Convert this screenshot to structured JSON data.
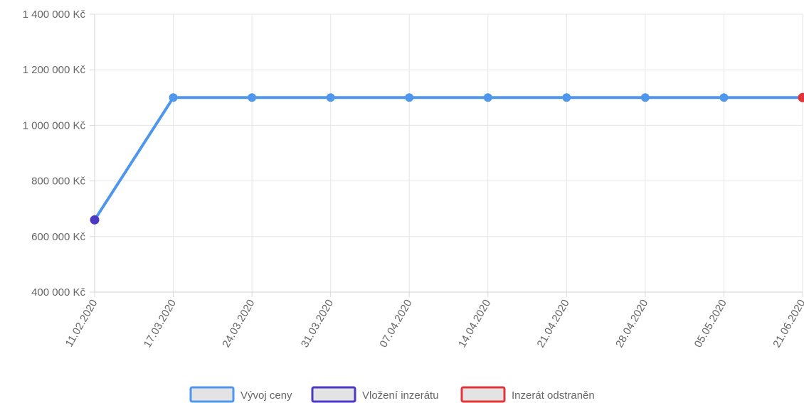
{
  "chart_data": {
    "type": "line",
    "x": [
      "11.02.2020",
      "17.03.2020",
      "24.03.2020",
      "31.03.2020",
      "07.04.2020",
      "14.04.2020",
      "21.04.2020",
      "28.04.2020",
      "05.05.2020",
      "21.06.2020"
    ],
    "y_ticks": [
      "1 400 000 Kč",
      "1 200 000 Kč",
      "1 000 000 Kč",
      "800 000 Kč",
      "600 000 Kč",
      "400 000 Kč"
    ],
    "y_tick_values": [
      1400000,
      1200000,
      1000000,
      800000,
      600000,
      400000
    ],
    "ylim": [
      400000,
      1400000
    ],
    "grid": true,
    "legend_position": "bottom",
    "series": [
      {
        "name": "Vývoj ceny",
        "values": [
          660000,
          1100000,
          1100000,
          1100000,
          1100000,
          1100000,
          1100000,
          1100000,
          1100000,
          1100000
        ],
        "color": "#4e97ec"
      },
      {
        "name": "Vložení inzerátu",
        "x": "11.02.2020",
        "value": 660000,
        "color": "#4b39c4"
      },
      {
        "name": "Inzerát odstraněn",
        "x": "21.06.2020",
        "value": 1100000,
        "color": "#e5333a"
      }
    ],
    "legend_fill": "#e3e3e3"
  }
}
